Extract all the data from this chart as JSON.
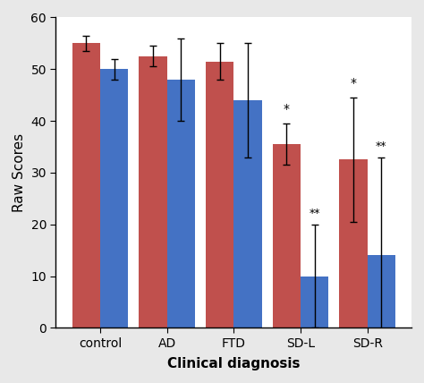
{
  "categories": [
    "control",
    "AD",
    "FTD",
    "SD-L",
    "SD-R"
  ],
  "red_values": [
    55.0,
    52.5,
    51.5,
    35.5,
    32.5
  ],
  "blue_values": [
    50.0,
    48.0,
    44.0,
    10.0,
    14.0
  ],
  "red_errors": [
    1.5,
    2.0,
    3.5,
    4.0,
    12.0
  ],
  "blue_errors": [
    2.0,
    8.0,
    11.0,
    10.0,
    19.0
  ],
  "red_color": "#C0504D",
  "blue_color": "#4472C4",
  "ylabel": "Raw Scores",
  "xlabel": "Clinical diagnosis",
  "ylim": [
    0,
    60
  ],
  "yticks": [
    0,
    10,
    20,
    30,
    40,
    50,
    60
  ],
  "bar_width": 0.42,
  "significance_red": [
    null,
    null,
    null,
    "*",
    "*"
  ],
  "significance_blue": [
    null,
    null,
    null,
    "**",
    "**"
  ],
  "outer_bg": "#E8E8E8",
  "inner_bg": "#FFFFFF",
  "figsize": [
    4.74,
    4.28
  ],
  "dpi": 100
}
